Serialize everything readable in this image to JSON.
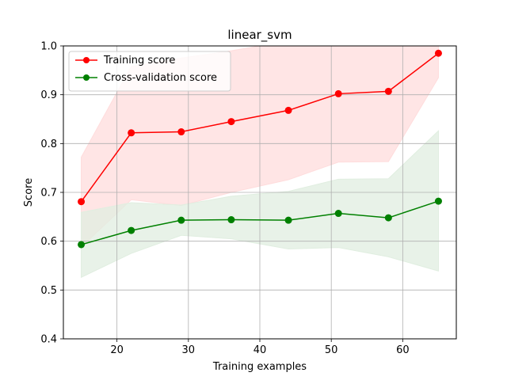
{
  "chart_data": {
    "type": "line",
    "title": "linear_svm",
    "xlabel": "Training examples",
    "ylabel": "Score",
    "xlim": [
      12.5,
      67.5
    ],
    "ylim": [
      0.4,
      1.0
    ],
    "xticks": [
      20,
      30,
      40,
      50,
      60
    ],
    "yticks": [
      0.4,
      0.5,
      0.6,
      0.7,
      0.8,
      0.9,
      1.0
    ],
    "grid": true,
    "legend_position": "top-left",
    "x": [
      15,
      22,
      29,
      36,
      44,
      51,
      58,
      65
    ],
    "series": [
      {
        "name": "Training score",
        "color": "#ff0000",
        "band_color": "#ffdcdc",
        "values": [
          0.681,
          0.822,
          0.824,
          0.845,
          0.868,
          0.902,
          0.907,
          0.985
        ],
        "lower": [
          0.588,
          0.685,
          0.673,
          0.7,
          0.726,
          0.762,
          0.763,
          0.935
        ],
        "upper": [
          0.772,
          0.958,
          0.975,
          0.99,
          1.01,
          1.04,
          1.05,
          1.035
        ]
      },
      {
        "name": "Cross-validation score",
        "color": "#008000",
        "band_color": "#e0eee0",
        "values": [
          0.593,
          0.622,
          0.643,
          0.644,
          0.643,
          0.657,
          0.648,
          0.682
        ],
        "lower": [
          0.526,
          0.575,
          0.612,
          0.605,
          0.584,
          0.587,
          0.568,
          0.539
        ],
        "upper": [
          0.659,
          0.679,
          0.674,
          0.692,
          0.702,
          0.727,
          0.728,
          0.826
        ]
      }
    ]
  }
}
